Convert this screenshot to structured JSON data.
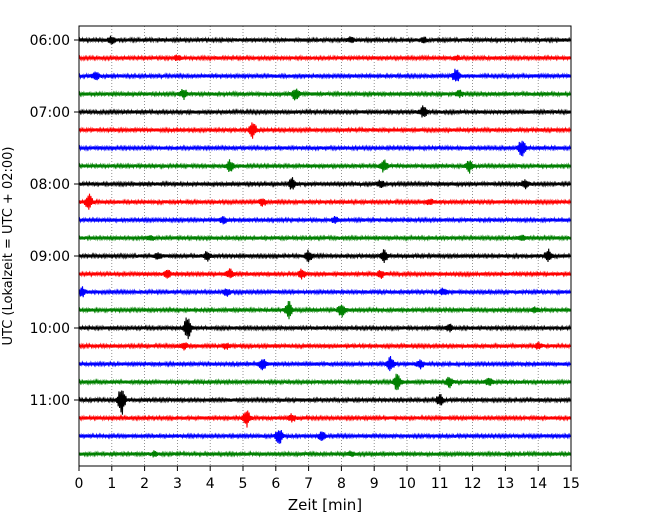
{
  "chart_data": {
    "type": "line",
    "xlabel": "Zeit  [min]",
    "ylabel": "UTC (Lokalzeit = UTC + 02:00)",
    "xlim": [
      0,
      15
    ],
    "xticks": [
      0,
      1,
      2,
      3,
      4,
      5,
      6,
      7,
      8,
      9,
      10,
      11,
      12,
      13,
      14,
      15
    ],
    "ytick_labels": [
      "06:00",
      "07:00",
      "08:00",
      "09:00",
      "10:00",
      "11:00"
    ],
    "ytick_rows": [
      0,
      4,
      8,
      12,
      16,
      20
    ],
    "grid": "vertical dotted",
    "trace_colors": [
      "#000000",
      "#ff0000",
      "#0000ff",
      "#008000"
    ],
    "rows": [
      {
        "start": "06:00",
        "events": [
          {
            "t": 1.0,
            "a": 0.5
          },
          {
            "t": 8.3,
            "a": 0.4
          },
          {
            "t": 10.5,
            "a": 0.4
          }
        ]
      },
      {
        "start": "06:15",
        "events": [
          {
            "t": 3.0,
            "a": 0.3
          },
          {
            "t": 11.5,
            "a": 0.3
          }
        ]
      },
      {
        "start": "06:30",
        "events": [
          {
            "t": 0.5,
            "a": 0.6
          },
          {
            "t": 11.5,
            "a": 1.0
          }
        ]
      },
      {
        "start": "06:45",
        "events": [
          {
            "t": 3.2,
            "a": 0.7
          },
          {
            "t": 6.6,
            "a": 0.8
          },
          {
            "t": 11.6,
            "a": 0.4
          }
        ]
      },
      {
        "start": "07:00",
        "events": [
          {
            "t": 10.5,
            "a": 0.8
          }
        ]
      },
      {
        "start": "07:15",
        "events": [
          {
            "t": 5.3,
            "a": 1.1
          }
        ]
      },
      {
        "start": "07:30",
        "events": [
          {
            "t": 13.5,
            "a": 1.2
          }
        ]
      },
      {
        "start": "07:45",
        "events": [
          {
            "t": 4.6,
            "a": 0.8
          },
          {
            "t": 9.3,
            "a": 0.8
          },
          {
            "t": 11.9,
            "a": 0.9
          }
        ]
      },
      {
        "start": "08:00",
        "events": [
          {
            "t": 6.5,
            "a": 0.8
          },
          {
            "t": 9.2,
            "a": 0.5
          },
          {
            "t": 13.6,
            "a": 0.6
          }
        ]
      },
      {
        "start": "08:15",
        "events": [
          {
            "t": 0.3,
            "a": 1.0
          },
          {
            "t": 5.6,
            "a": 0.5
          },
          {
            "t": 10.7,
            "a": 0.4
          }
        ]
      },
      {
        "start": "08:30",
        "events": [
          {
            "t": 4.4,
            "a": 0.5
          },
          {
            "t": 7.8,
            "a": 0.4
          }
        ]
      },
      {
        "start": "08:45",
        "events": [
          {
            "t": 2.2,
            "a": 0.3
          },
          {
            "t": 13.5,
            "a": 0.3
          }
        ]
      },
      {
        "start": "09:00",
        "events": [
          {
            "t": 2.4,
            "a": 0.5
          },
          {
            "t": 3.9,
            "a": 0.6
          },
          {
            "t": 7.0,
            "a": 0.7
          },
          {
            "t": 9.3,
            "a": 0.9
          },
          {
            "t": 14.3,
            "a": 0.9
          }
        ]
      },
      {
        "start": "09:15",
        "events": [
          {
            "t": 2.7,
            "a": 0.5
          },
          {
            "t": 4.6,
            "a": 0.6
          },
          {
            "t": 6.8,
            "a": 0.6
          },
          {
            "t": 9.2,
            "a": 0.5
          }
        ]
      },
      {
        "start": "09:30",
        "events": [
          {
            "t": 0.1,
            "a": 0.6
          },
          {
            "t": 4.5,
            "a": 0.5
          },
          {
            "t": 11.1,
            "a": 0.4
          }
        ]
      },
      {
        "start": "09:45",
        "events": [
          {
            "t": 6.4,
            "a": 1.1
          },
          {
            "t": 8.0,
            "a": 0.9
          },
          {
            "t": 13.9,
            "a": 0.4
          }
        ]
      },
      {
        "start": "10:00",
        "events": [
          {
            "t": 3.3,
            "a": 1.7
          },
          {
            "t": 11.3,
            "a": 0.4
          }
        ]
      },
      {
        "start": "10:15",
        "events": [
          {
            "t": 3.2,
            "a": 0.5
          },
          {
            "t": 4.5,
            "a": 0.4
          },
          {
            "t": 14.0,
            "a": 0.4
          }
        ]
      },
      {
        "start": "10:30",
        "events": [
          {
            "t": 5.6,
            "a": 0.8
          },
          {
            "t": 9.5,
            "a": 0.9
          },
          {
            "t": 10.4,
            "a": 0.6
          }
        ]
      },
      {
        "start": "10:45",
        "events": [
          {
            "t": 9.7,
            "a": 1.3
          },
          {
            "t": 11.3,
            "a": 0.7
          },
          {
            "t": 12.5,
            "a": 0.4
          }
        ]
      },
      {
        "start": "11:00",
        "events": [
          {
            "t": 1.3,
            "a": 2.2
          },
          {
            "t": 11.0,
            "a": 0.8
          }
        ]
      },
      {
        "start": "11:15",
        "events": [
          {
            "t": 5.1,
            "a": 1.2
          },
          {
            "t": 6.5,
            "a": 0.5
          }
        ]
      },
      {
        "start": "11:30",
        "events": [
          {
            "t": 6.1,
            "a": 1.1
          },
          {
            "t": 7.4,
            "a": 0.6
          }
        ]
      },
      {
        "start": "11:45",
        "events": [
          {
            "t": 2.3,
            "a": 0.3
          },
          {
            "t": 8.3,
            "a": 0.3
          }
        ]
      }
    ]
  }
}
